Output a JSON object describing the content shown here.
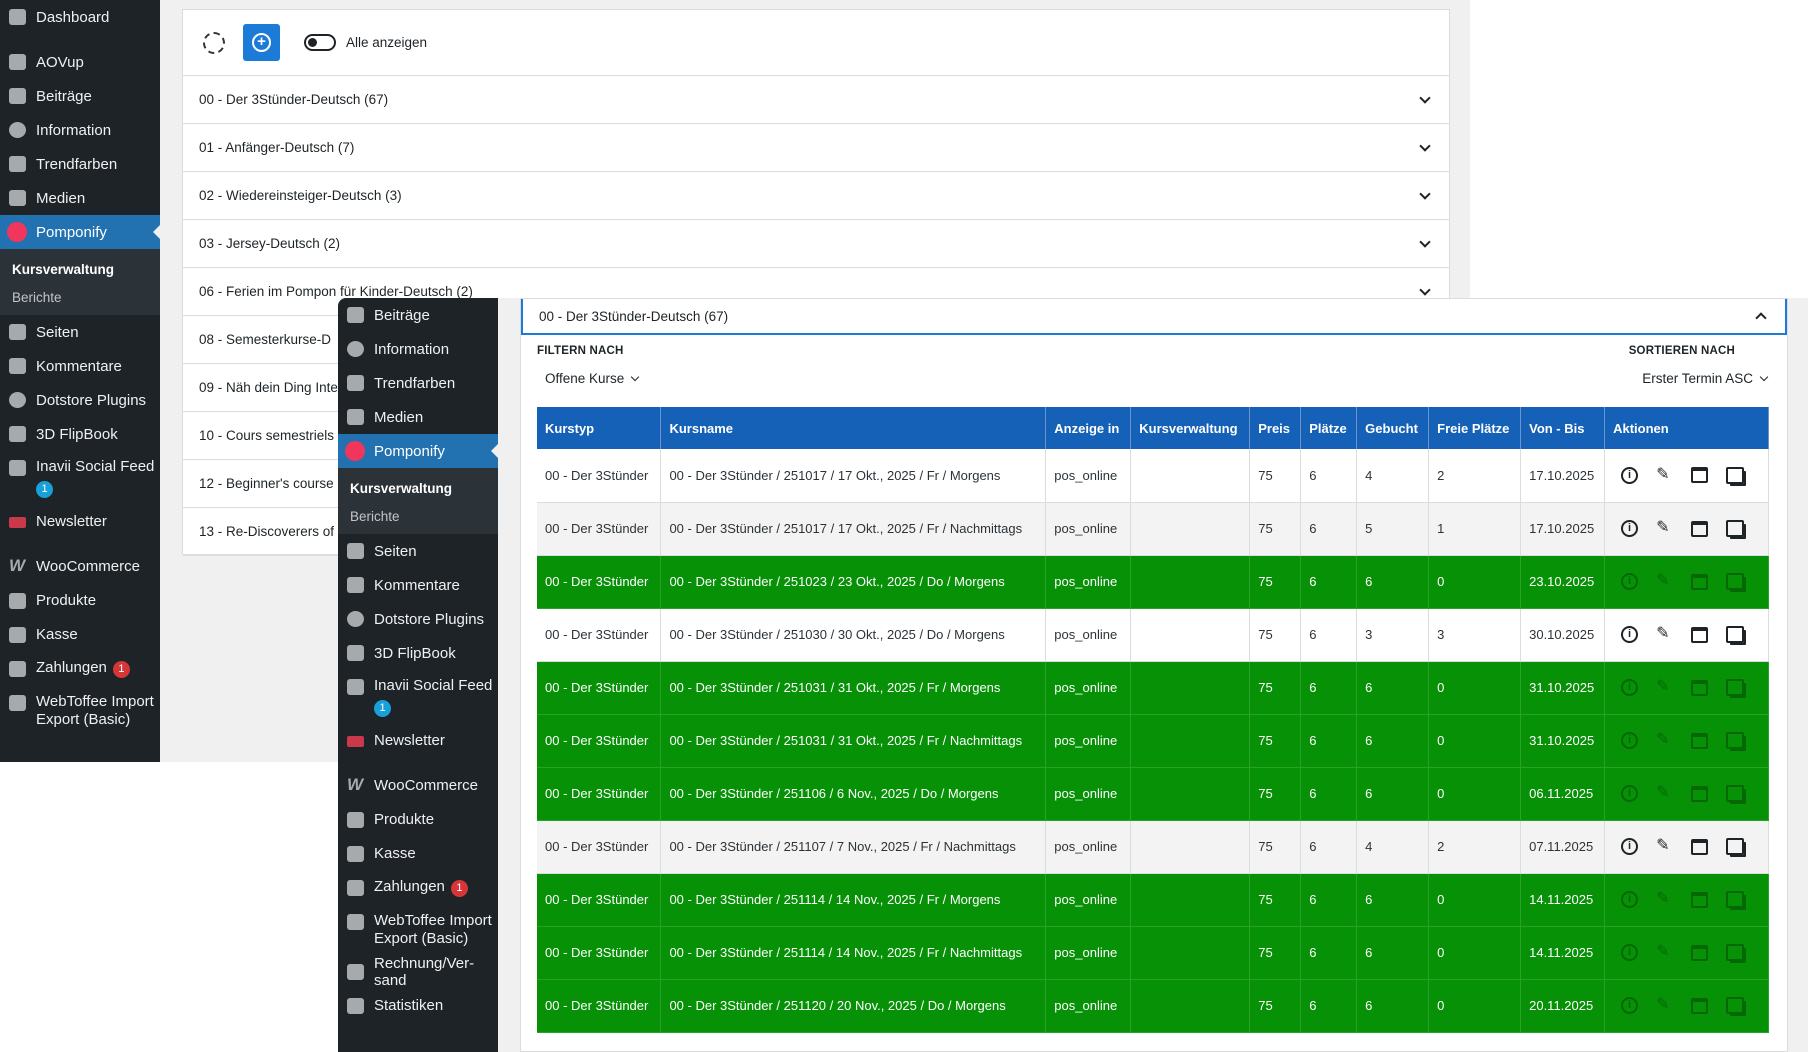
{
  "background": {
    "sidebar": {
      "items": [
        {
          "label": "Dashboard",
          "icon": "dashboard-icon"
        },
        {
          "label": "AOVup",
          "icon": "aovup-icon"
        },
        {
          "label": "Beiträge",
          "icon": "pin-icon"
        },
        {
          "label": "Information",
          "icon": "info-icon"
        },
        {
          "label": "Trendfarben",
          "icon": "pin-icon"
        },
        {
          "label": "Medien",
          "icon": "media-icon"
        },
        {
          "label": "Pomponify",
          "icon": "pomponify-icon"
        }
      ],
      "submenu": [
        "Kursverwaltung",
        "Berichte"
      ],
      "items_after": [
        {
          "label": "Seiten",
          "icon": "pages-icon"
        },
        {
          "label": "Kommentare",
          "icon": "comments-icon"
        },
        {
          "label": "Dotstore Plugins",
          "icon": "dotstore-icon"
        },
        {
          "label": "3D FlipBook",
          "icon": "flipbook-icon"
        },
        {
          "label": "Inavii Social Feed",
          "icon": "instagram-icon",
          "badge": "1"
        },
        {
          "label": "Newsletter",
          "icon": "mail-icon"
        },
        {
          "label": "WooCommerce",
          "icon": "woocommerce-icon"
        },
        {
          "label": "Produkte",
          "icon": "products-icon"
        },
        {
          "label": "Kasse",
          "icon": "store-icon"
        },
        {
          "label": "Zahlungen",
          "icon": "payments-icon",
          "badge": "1"
        },
        {
          "label": "WebToffee Import Export (Basic)",
          "icon": "import-export-icon"
        }
      ]
    },
    "toolbar": {
      "toggle_label": "Alle anzeigen"
    },
    "accordion": [
      "00 - Der 3Stünder-Deutsch (67)",
      "01 - Anfänger-Deutsch (7)",
      "02 - Wiedereinsteiger-Deutsch (3)",
      "03 - Jersey-Deutsch (2)",
      "06 - Ferien im Pompon für Kinder-Deutsch (2)",
      "08 - Semesterkurse-D",
      "09 - Näh dein Ding Inte",
      "10 - Cours semestriels",
      "12 - Beginner's course",
      "13 - Re-Discoverers of"
    ]
  },
  "overlay": {
    "sidebar": {
      "items": [
        {
          "label": "Beiträge"
        },
        {
          "label": "Information"
        },
        {
          "label": "Trendfarben"
        },
        {
          "label": "Medien"
        },
        {
          "label": "Pomponify"
        }
      ],
      "submenu": [
        "Kursverwaltung",
        "Berichte"
      ],
      "items_after": [
        {
          "label": "Seiten"
        },
        {
          "label": "Kommentare"
        },
        {
          "label": "Dotstore Plugins"
        },
        {
          "label": "3D FlipBook"
        },
        {
          "label": "Inavii Social Feed",
          "badge": "1"
        },
        {
          "label": "Newsletter"
        },
        {
          "label": "WooCommerce"
        },
        {
          "label": "Produkte"
        },
        {
          "label": "Kasse"
        },
        {
          "label": "Zahlungen",
          "badge": "1"
        },
        {
          "label": "WebToffee Import Export (Basic)"
        },
        {
          "label": "Rechnung/Ver-sand"
        },
        {
          "label": "Statistiken"
        }
      ]
    },
    "expanded_title": "00 - Der 3Stünder-Deutsch (67)",
    "filter": {
      "caption": "FILTERN NACH",
      "value": "Offene Kurse"
    },
    "sort": {
      "caption": "SORTIEREN NACH",
      "value": "Erster Termin ASC"
    },
    "table": {
      "columns": [
        "Kurstyp",
        "Kursname",
        "Anzeige in",
        "Kursverwaltung",
        "Preis",
        "Plätze",
        "Gebucht",
        "Freie Plätze",
        "Von - Bis",
        "Aktionen"
      ],
      "rows": [
        {
          "typ": "00 - Der 3Stünder",
          "name": "00 - Der 3Stünder / 251017 / 17 Okt., 2025 / Fr / Morgens",
          "anzeige": "pos_online",
          "verwaltung": "",
          "preis": "75",
          "plaetze": "6",
          "gebucht": "4",
          "frei": "2",
          "datum": "17.10.2025",
          "full": false
        },
        {
          "typ": "00 - Der 3Stünder",
          "name": "00 - Der 3Stünder / 251017 / 17 Okt., 2025 / Fr / Nachmittags",
          "anzeige": "pos_online",
          "verwaltung": "",
          "preis": "75",
          "plaetze": "6",
          "gebucht": "5",
          "frei": "1",
          "datum": "17.10.2025",
          "full": false
        },
        {
          "typ": "00 - Der 3Stünder",
          "name": "00 - Der 3Stünder / 251023 / 23 Okt., 2025 / Do / Morgens",
          "anzeige": "pos_online",
          "verwaltung": "",
          "preis": "75",
          "plaetze": "6",
          "gebucht": "6",
          "frei": "0",
          "datum": "23.10.2025",
          "full": true
        },
        {
          "typ": "00 - Der 3Stünder",
          "name": "00 - Der 3Stünder / 251030 / 30 Okt., 2025 / Do / Morgens",
          "anzeige": "pos_online",
          "verwaltung": "",
          "preis": "75",
          "plaetze": "6",
          "gebucht": "3",
          "frei": "3",
          "datum": "30.10.2025",
          "full": false
        },
        {
          "typ": "00 - Der 3Stünder",
          "name": "00 - Der 3Stünder / 251031 / 31 Okt., 2025 / Fr / Morgens",
          "anzeige": "pos_online",
          "verwaltung": "",
          "preis": "75",
          "plaetze": "6",
          "gebucht": "6",
          "frei": "0",
          "datum": "31.10.2025",
          "full": true
        },
        {
          "typ": "00 - Der 3Stünder",
          "name": "00 - Der 3Stünder / 251031 / 31 Okt., 2025 / Fr / Nachmittags",
          "anzeige": "pos_online",
          "verwaltung": "",
          "preis": "75",
          "plaetze": "6",
          "gebucht": "6",
          "frei": "0",
          "datum": "31.10.2025",
          "full": true
        },
        {
          "typ": "00 - Der 3Stünder",
          "name": "00 - Der 3Stünder / 251106 / 6 Nov., 2025 / Do / Morgens",
          "anzeige": "pos_online",
          "verwaltung": "",
          "preis": "75",
          "plaetze": "6",
          "gebucht": "6",
          "frei": "0",
          "datum": "06.11.2025",
          "full": true
        },
        {
          "typ": "00 - Der 3Stünder",
          "name": "00 - Der 3Stünder / 251107 / 7 Nov., 2025 / Fr / Nachmittags",
          "anzeige": "pos_online",
          "verwaltung": "",
          "preis": "75",
          "plaetze": "6",
          "gebucht": "4",
          "frei": "2",
          "datum": "07.11.2025",
          "full": false
        },
        {
          "typ": "00 - Der 3Stünder",
          "name": "00 - Der 3Stünder / 251114 / 14 Nov., 2025 / Fr / Morgens",
          "anzeige": "pos_online",
          "verwaltung": "",
          "preis": "75",
          "plaetze": "6",
          "gebucht": "6",
          "frei": "0",
          "datum": "14.11.2025",
          "full": true
        },
        {
          "typ": "00 - Der 3Stünder",
          "name": "00 - Der 3Stünder / 251114 / 14 Nov., 2025 / Fr / Nachmittags",
          "anzeige": "pos_online",
          "verwaltung": "",
          "preis": "75",
          "plaetze": "6",
          "gebucht": "6",
          "frei": "0",
          "datum": "14.11.2025",
          "full": true
        },
        {
          "typ": "00 - Der 3Stünder",
          "name": "00 - Der 3Stünder / 251120 / 20 Nov., 2025 / Do / Morgens",
          "anzeige": "pos_online",
          "verwaltung": "",
          "preis": "75",
          "plaetze": "6",
          "gebucht": "6",
          "frei": "0",
          "datum": "20.11.2025",
          "full": true
        }
      ]
    }
  },
  "colors": {
    "wp_dark": "#1d2327",
    "wp_blue": "#2271b1",
    "table_header": "#1661b8",
    "full_row_green": "#079107",
    "accent_button": "#1d7bd8",
    "pomponify_dot": "#f0365b"
  }
}
